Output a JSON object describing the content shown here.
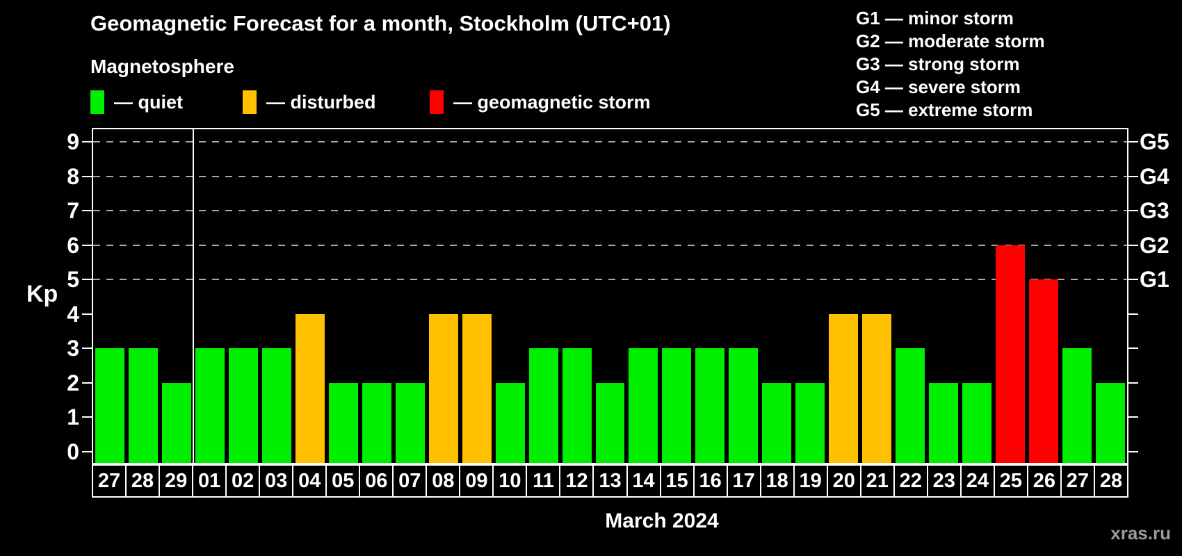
{
  "title": "Geomagnetic Forecast for a month, Stockholm (UTC+01)",
  "subtitle": "Magnetosphere",
  "bar_legend": {
    "items": [
      {
        "key": "quiet",
        "label": "— quiet",
        "color": "#00ee00"
      },
      {
        "key": "disturbed",
        "label": "— disturbed",
        "color": "#ffc000"
      },
      {
        "key": "storm",
        "label": "— geomagnetic storm",
        "color": "#ff0000"
      }
    ]
  },
  "storm_legend": {
    "items": [
      {
        "code": "G1",
        "label": "G1 — minor storm"
      },
      {
        "code": "G2",
        "label": "G2 — moderate storm"
      },
      {
        "code": "G3",
        "label": "G3 — strong storm"
      },
      {
        "code": "G4",
        "label": "G4 — severe storm"
      },
      {
        "code": "G5",
        "label": "G5 — extreme storm"
      }
    ]
  },
  "axes": {
    "y_label": "Kp",
    "y_ticks": [
      0,
      1,
      2,
      3,
      4,
      5,
      6,
      7,
      8,
      9
    ],
    "right_labels": [
      {
        "text": "G1",
        "kp": 5
      },
      {
        "text": "G2",
        "kp": 6
      },
      {
        "text": "G3",
        "kp": 7
      },
      {
        "text": "G4",
        "kp": 8
      },
      {
        "text": "G5",
        "kp": 9
      }
    ],
    "x_label": "March 2024"
  },
  "watermark": "xras.ru",
  "chart_data": {
    "type": "bar",
    "title": "Geomagnetic Forecast for a month, Stockholm (UTC+01)",
    "xlabel": "March 2024",
    "ylabel": "Kp",
    "ylim": [
      0,
      9.4
    ],
    "grid": "dashed horizontal at Kp 5-9",
    "gridlines_at": [
      5,
      6,
      7,
      8,
      9
    ],
    "legend_position": "top-left",
    "month_separator_after_index": 2,
    "categories": [
      "27",
      "28",
      "29",
      "01",
      "02",
      "03",
      "04",
      "05",
      "06",
      "07",
      "08",
      "09",
      "10",
      "11",
      "12",
      "13",
      "14",
      "15",
      "16",
      "17",
      "18",
      "19",
      "20",
      "21",
      "22",
      "23",
      "24",
      "25",
      "26",
      "27",
      "28"
    ],
    "values": [
      3,
      3,
      2,
      3,
      3,
      3,
      4,
      2,
      2,
      2,
      4,
      4,
      2,
      3,
      3,
      2,
      3,
      3,
      3,
      3,
      2,
      2,
      4,
      4,
      3,
      2,
      2,
      6,
      5,
      3,
      2
    ],
    "statuses": [
      "quiet",
      "quiet",
      "quiet",
      "quiet",
      "quiet",
      "quiet",
      "disturbed",
      "quiet",
      "quiet",
      "quiet",
      "disturbed",
      "disturbed",
      "quiet",
      "quiet",
      "quiet",
      "quiet",
      "quiet",
      "quiet",
      "quiet",
      "quiet",
      "quiet",
      "quiet",
      "disturbed",
      "disturbed",
      "quiet",
      "quiet",
      "quiet",
      "storm",
      "storm",
      "quiet",
      "quiet"
    ],
    "colors": {
      "quiet": "#00ee00",
      "disturbed": "#ffc000",
      "storm": "#ff0000"
    }
  }
}
